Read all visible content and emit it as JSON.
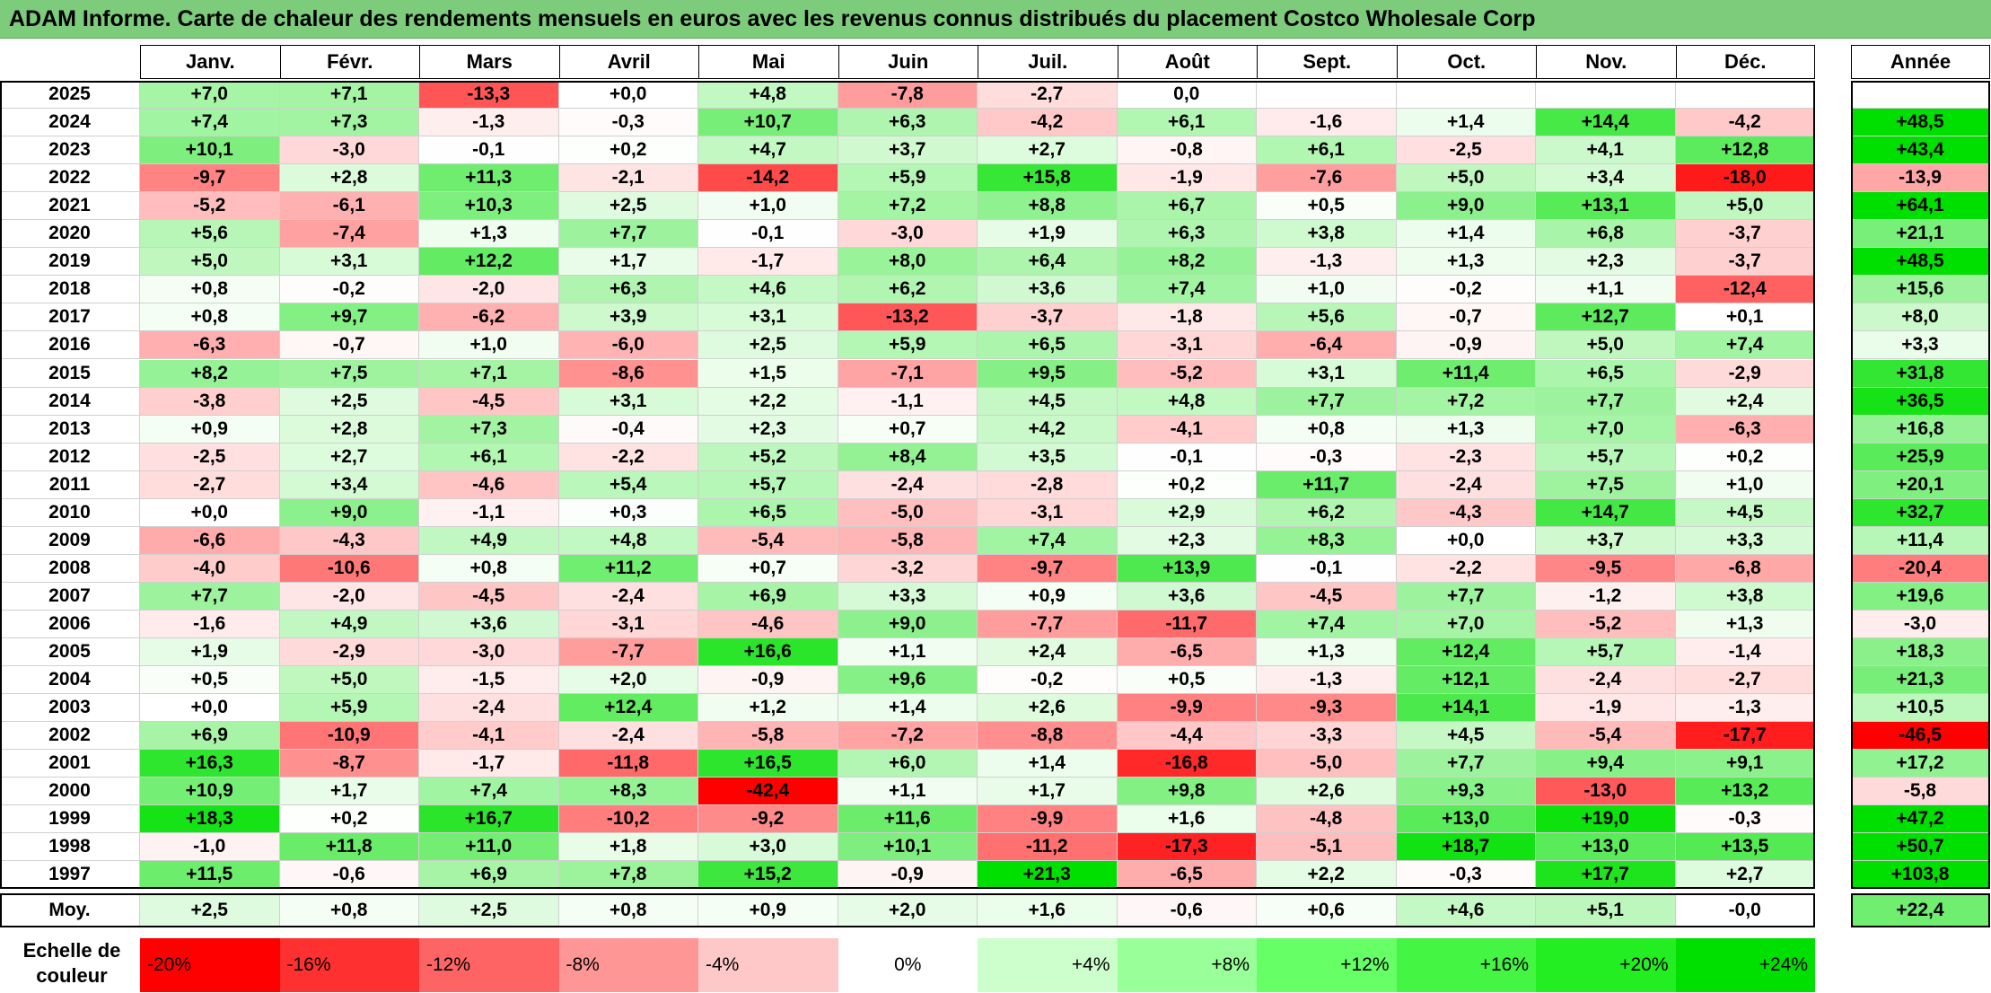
{
  "title": "ADAM Informe. Carte de chaleur des rendements mensuels en euros avec les revenus connus distribués du placement Costco Wholesale Corp",
  "chart_data": {
    "type": "heatmap",
    "columns": [
      "Janv.",
      "Févr.",
      "Mars",
      "Avril",
      "Mai",
      "Juin",
      "Juil.",
      "Août",
      "Sept.",
      "Oct.",
      "Nov.",
      "Déc."
    ],
    "annual_header": "Année",
    "rows": [
      {
        "year": "2025",
        "values": [
          "+7,0",
          "+7,1",
          "-13,3",
          "+0,0",
          "+4,8",
          "-7,8",
          "-2,7",
          "0,0",
          "",
          "",
          "",
          ""
        ],
        "annual": ""
      },
      {
        "year": "2024",
        "values": [
          "+7,4",
          "+7,3",
          "-1,3",
          "-0,3",
          "+10,7",
          "+6,3",
          "-4,2",
          "+6,1",
          "-1,6",
          "+1,4",
          "+14,4",
          "-4,2"
        ],
        "annual": "+48,5"
      },
      {
        "year": "2023",
        "values": [
          "+10,1",
          "-3,0",
          "-0,1",
          "+0,2",
          "+4,7",
          "+3,7",
          "+2,7",
          "-0,8",
          "+6,1",
          "-2,5",
          "+4,1",
          "+12,8"
        ],
        "annual": "+43,4"
      },
      {
        "year": "2022",
        "values": [
          "-9,7",
          "+2,8",
          "+11,3",
          "-2,1",
          "-14,2",
          "+5,9",
          "+15,8",
          "-1,9",
          "-7,6",
          "+5,0",
          "+3,4",
          "-18,0"
        ],
        "annual": "-13,9"
      },
      {
        "year": "2021",
        "values": [
          "-5,2",
          "-6,1",
          "+10,3",
          "+2,5",
          "+1,0",
          "+7,2",
          "+8,8",
          "+6,7",
          "+0,5",
          "+9,0",
          "+13,1",
          "+5,0"
        ],
        "annual": "+64,1"
      },
      {
        "year": "2020",
        "values": [
          "+5,6",
          "-7,4",
          "+1,3",
          "+7,7",
          "-0,1",
          "-3,0",
          "+1,9",
          "+6,3",
          "+3,8",
          "+1,4",
          "+6,8",
          "-3,7"
        ],
        "annual": "+21,1"
      },
      {
        "year": "2019",
        "values": [
          "+5,0",
          "+3,1",
          "+12,2",
          "+1,7",
          "-1,7",
          "+8,0",
          "+6,4",
          "+8,2",
          "-1,3",
          "+1,3",
          "+2,3",
          "-3,7"
        ],
        "annual": "+48,5"
      },
      {
        "year": "2018",
        "values": [
          "+0,8",
          "-0,2",
          "-2,0",
          "+6,3",
          "+4,6",
          "+6,2",
          "+3,6",
          "+7,4",
          "+1,0",
          "-0,2",
          "+1,1",
          "-12,4"
        ],
        "annual": "+15,6"
      },
      {
        "year": "2017",
        "values": [
          "+0,8",
          "+9,7",
          "-6,2",
          "+3,9",
          "+3,1",
          "-13,2",
          "-3,7",
          "-1,8",
          "+5,6",
          "-0,7",
          "+12,7",
          "+0,1"
        ],
        "annual": "+8,0"
      },
      {
        "year": "2016",
        "values": [
          "-6,3",
          "-0,7",
          "+1,0",
          "-6,0",
          "+2,5",
          "+5,9",
          "+6,5",
          "-3,1",
          "-6,4",
          "-0,9",
          "+5,0",
          "+7,4"
        ],
        "annual": "+3,3"
      },
      {
        "year": "2015",
        "values": [
          "+8,2",
          "+7,5",
          "+7,1",
          "-8,6",
          "+1,5",
          "-7,1",
          "+9,5",
          "-5,2",
          "+3,1",
          "+11,4",
          "+6,5",
          "-2,9"
        ],
        "annual": "+31,8"
      },
      {
        "year": "2014",
        "values": [
          "-3,8",
          "+2,5",
          "-4,5",
          "+3,1",
          "+2,2",
          "-1,1",
          "+4,5",
          "+4,8",
          "+7,7",
          "+7,2",
          "+7,7",
          "+2,4"
        ],
        "annual": "+36,5"
      },
      {
        "year": "2013",
        "values": [
          "+0,9",
          "+2,8",
          "+7,3",
          "-0,4",
          "+2,3",
          "+0,7",
          "+4,2",
          "-4,1",
          "+0,8",
          "+1,3",
          "+7,0",
          "-6,3"
        ],
        "annual": "+16,8"
      },
      {
        "year": "2012",
        "values": [
          "-2,5",
          "+2,7",
          "+6,1",
          "-2,2",
          "+5,2",
          "+8,4",
          "+3,5",
          "-0,1",
          "-0,3",
          "-2,3",
          "+5,7",
          "+0,2"
        ],
        "annual": "+25,9"
      },
      {
        "year": "2011",
        "values": [
          "-2,7",
          "+3,4",
          "-4,6",
          "+5,4",
          "+5,7",
          "-2,4",
          "-2,8",
          "+0,2",
          "+11,7",
          "-2,4",
          "+7,5",
          "+1,0"
        ],
        "annual": "+20,1"
      },
      {
        "year": "2010",
        "values": [
          "+0,0",
          "+9,0",
          "-1,1",
          "+0,3",
          "+6,5",
          "-5,0",
          "-3,1",
          "+2,9",
          "+6,2",
          "-4,3",
          "+14,7",
          "+4,5"
        ],
        "annual": "+32,7"
      },
      {
        "year": "2009",
        "values": [
          "-6,6",
          "-4,3",
          "+4,9",
          "+4,8",
          "-5,4",
          "-5,8",
          "+7,4",
          "+2,3",
          "+8,3",
          "+0,0",
          "+3,7",
          "+3,3"
        ],
        "annual": "+11,4"
      },
      {
        "year": "2008",
        "values": [
          "-4,0",
          "-10,6",
          "+0,8",
          "+11,2",
          "+0,7",
          "-3,2",
          "-9,7",
          "+13,9",
          "-0,1",
          "-2,2",
          "-9,5",
          "-6,8"
        ],
        "annual": "-20,4"
      },
      {
        "year": "2007",
        "values": [
          "+7,7",
          "-2,0",
          "-4,5",
          "-2,4",
          "+6,9",
          "+3,3",
          "+0,9",
          "+3,6",
          "-4,5",
          "+7,7",
          "-1,2",
          "+3,8"
        ],
        "annual": "+19,6"
      },
      {
        "year": "2006",
        "values": [
          "-1,6",
          "+4,9",
          "+3,6",
          "-3,1",
          "-4,6",
          "+9,0",
          "-7,7",
          "-11,7",
          "+7,4",
          "+7,0",
          "-5,2",
          "+1,3"
        ],
        "annual": "-3,0"
      },
      {
        "year": "2005",
        "values": [
          "+1,9",
          "-2,9",
          "-3,0",
          "-7,7",
          "+16,6",
          "+1,1",
          "+2,4",
          "-6,5",
          "+1,3",
          "+12,4",
          "+5,7",
          "-1,4"
        ],
        "annual": "+18,3"
      },
      {
        "year": "2004",
        "values": [
          "+0,5",
          "+5,0",
          "-1,5",
          "+2,0",
          "-0,9",
          "+9,6",
          "-0,2",
          "+0,5",
          "-1,3",
          "+12,1",
          "-2,4",
          "-2,7"
        ],
        "annual": "+21,3"
      },
      {
        "year": "2003",
        "values": [
          "+0,0",
          "+5,9",
          "-2,4",
          "+12,4",
          "+1,2",
          "+1,4",
          "+2,6",
          "-9,9",
          "-9,3",
          "+14,1",
          "-1,9",
          "-1,3"
        ],
        "annual": "+10,5"
      },
      {
        "year": "2002",
        "values": [
          "+6,9",
          "-10,9",
          "-4,1",
          "-2,4",
          "-5,8",
          "-7,2",
          "-8,8",
          "-4,4",
          "-3,3",
          "+4,5",
          "-5,4",
          "-17,7"
        ],
        "annual": "-46,5"
      },
      {
        "year": "2001",
        "values": [
          "+16,3",
          "-8,7",
          "-1,7",
          "-11,8",
          "+16,5",
          "+6,0",
          "+1,4",
          "-16,8",
          "-5,0",
          "+7,7",
          "+9,4",
          "+9,1"
        ],
        "annual": "+17,2"
      },
      {
        "year": "2000",
        "values": [
          "+10,9",
          "+1,7",
          "+7,4",
          "+8,3",
          "-42,4",
          "+1,1",
          "+1,7",
          "+9,8",
          "+2,6",
          "+9,3",
          "-13,0",
          "+13,2"
        ],
        "annual": "-5,8"
      },
      {
        "year": "1999",
        "values": [
          "+18,3",
          "+0,2",
          "+16,7",
          "-10,2",
          "-9,2",
          "+11,6",
          "-9,9",
          "+1,6",
          "-4,8",
          "+13,0",
          "+19,0",
          "-0,3"
        ],
        "annual": "+47,2"
      },
      {
        "year": "1998",
        "values": [
          "-1,0",
          "+11,8",
          "+11,0",
          "+1,8",
          "+3,0",
          "+10,1",
          "-11,2",
          "-17,3",
          "-5,1",
          "+18,7",
          "+13,0",
          "+13,5"
        ],
        "annual": "+50,7"
      },
      {
        "year": "1997",
        "values": [
          "+11,5",
          "-0,6",
          "+6,9",
          "+7,8",
          "+15,2",
          "-0,9",
          "+21,3",
          "-6,5",
          "+2,2",
          "-0,3",
          "+17,7",
          "+2,7"
        ],
        "annual": "+103,8"
      }
    ],
    "average": {
      "label": "Moy.",
      "values": [
        "+2,5",
        "+0,8",
        "+2,5",
        "+0,8",
        "+0,9",
        "+2,0",
        "+1,6",
        "-0,6",
        "+0,6",
        "+4,6",
        "+5,1",
        "-0,0"
      ],
      "annual": "+22,4"
    },
    "color_scale": {
      "label_line1": "Echelle de",
      "label_line2": "couleur",
      "steps": [
        {
          "label": "-20%",
          "value": -20,
          "color": "#ff0000"
        },
        {
          "label": "-16%",
          "value": -16,
          "color": "#ff3030"
        },
        {
          "label": "-12%",
          "value": -12,
          "color": "#ff6464"
        },
        {
          "label": "-8%",
          "value": -8,
          "color": "#ff9696"
        },
        {
          "label": "-4%",
          "value": -4,
          "color": "#ffc8c8"
        },
        {
          "label": "0%",
          "value": 0,
          "color": "#ffffff"
        },
        {
          "label": "+4%",
          "value": 4,
          "color": "#ccffcc"
        },
        {
          "label": "+8%",
          "value": 8,
          "color": "#99ff99"
        },
        {
          "label": "+12%",
          "value": 12,
          "color": "#66ff66"
        },
        {
          "label": "+16%",
          "value": 16,
          "color": "#44f544"
        },
        {
          "label": "+20%",
          "value": 20,
          "color": "#22ee22"
        },
        {
          "label": "+24%",
          "value": 24,
          "color": "#00e000"
        }
      ]
    }
  }
}
